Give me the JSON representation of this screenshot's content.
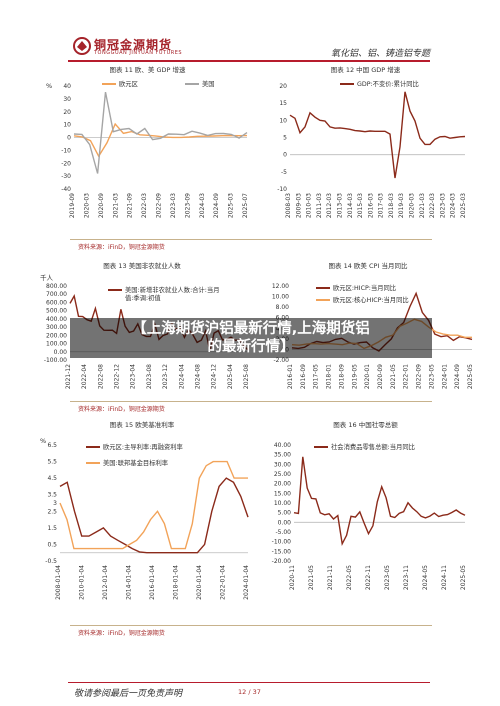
{
  "header": {
    "logo_cn": "铜冠金源期货",
    "logo_en": "TONGGUAN JINYUAN FUTURES",
    "section": "氧化铝、铝、铸造铝专题"
  },
  "banner": {
    "line1": "【上海期货沪铝最新行情,上海期货铝",
    "line2": "的最新行情】"
  },
  "sources": {
    "row1": "资料来源：iFinD，铜冠金源期货",
    "row2": "资料来源：iFinD，铜冠金源期货",
    "row3": "资料来源：iFinD，铜冠金源期货"
  },
  "footer": {
    "note": "敬请参阅最后一页免责声明",
    "page": "12 / 37"
  },
  "chart_data": [
    {
      "id": "c11",
      "title": "图表 11  欧、美 GDP 增速",
      "unit": "%",
      "type": "line",
      "ylim": [
        -40,
        40
      ],
      "yticks": [
        40,
        30,
        20,
        10,
        0,
        -10,
        -20,
        -30,
        -40
      ],
      "xticks": [
        "2019-09",
        "2020-03",
        "2020-09",
        "2021-03",
        "2021-09",
        "2022-03",
        "2022-09",
        "2023-03",
        "2023-09",
        "2024-03",
        "2024-09",
        "2025-03",
        "2025-07"
      ],
      "series": [
        {
          "name": "欧元区",
          "color": "#f2a359",
          "values": [
            1.3,
            0.5,
            -2.5,
            -14.5,
            -4.1,
            10.5,
            3.3,
            4.6,
            2.1,
            1.7,
            1.1,
            0.3,
            0.1,
            0.1,
            0.4,
            0.9,
            1.0,
            1.2,
            1.4,
            1.5,
            1.4,
            1.5
          ]
        },
        {
          "name": "美国",
          "color": "#a5a5a5",
          "values": [
            2.7,
            2.4,
            -5.5,
            -28.0,
            35.3,
            4.5,
            6.3,
            7.0,
            2.7,
            7.0,
            -1.6,
            -0.6,
            2.7,
            2.6,
            2.2,
            4.9,
            3.4,
            1.6,
            3.0,
            3.1,
            2.4,
            -0.5,
            3.8
          ]
        }
      ]
    },
    {
      "id": "c12",
      "title": "图表 12  中国 GDP 增速",
      "unit": "",
      "type": "line",
      "ylim": [
        -10,
        20
      ],
      "yticks": [
        20,
        15,
        10,
        5,
        0,
        -5,
        -10
      ],
      "xticks": [
        "2008-03",
        "2009-03",
        "2010-03",
        "2011-03",
        "2012-03",
        "2013-03",
        "2014-03",
        "2015-03",
        "2016-03",
        "2017-03",
        "2018-03",
        "2019-03",
        "2020-03",
        "2021-03",
        "2022-03",
        "2023-03",
        "2024-03",
        "2025-03"
      ],
      "series": [
        {
          "name": "GDP:不变价:累计同比",
          "color": "#8b2a1a",
          "values": [
            11.5,
            10.6,
            6.4,
            8.1,
            12.2,
            10.9,
            10.0,
            9.8,
            8.1,
            7.7,
            7.8,
            7.6,
            7.4,
            7.0,
            6.9,
            6.7,
            6.9,
            6.8,
            6.8,
            6.8,
            6.0,
            -6.8,
            2.3,
            18.3,
            12.7,
            9.8,
            4.8,
            3.0,
            3.0,
            4.5,
            5.2,
            5.3,
            4.8,
            5.0,
            5.2,
            5.3
          ]
        }
      ]
    },
    {
      "id": "c13",
      "title": "图表 13  美国非农就业人数",
      "unit": "千人",
      "type": "line",
      "ylim": [
        -100,
        800
      ],
      "yticks": [
        "800.00",
        "700.00",
        "600.00",
        "500.00",
        "400.00",
        "300.00",
        "200.00",
        "100.00",
        "0.00",
        "-100.00"
      ],
      "xticks": [
        "2021-12",
        "2022-04",
        "2022-08",
        "2022-12",
        "2023-04",
        "2023-08",
        "2023-12",
        "2024-04",
        "2024-08",
        "2024-12",
        "2025-04",
        "2025-08"
      ],
      "series": [
        {
          "name": "美国:新增非农就业人数:合计:当月值:季调:初值",
          "color": "#8b2a1a",
          "values": [
            588,
            678,
            431,
            428,
            390,
            372,
            528,
            315,
            263,
            261,
            263,
            223,
            517,
            311,
            236,
            253,
            339,
            209,
            187,
            187,
            336,
            150,
            199,
            216,
            353,
            275,
            303,
            175,
            272,
            206,
            114,
            142,
            254,
            12,
            227,
            256,
            143,
            151,
            177,
            139,
            147,
            73,
            22
          ]
        }
      ]
    },
    {
      "id": "c14",
      "title": "图表 14  欧美 CPI 当月同比",
      "unit": "",
      "type": "line",
      "ylim": [
        -2,
        12
      ],
      "yticks": [
        "12.00",
        "10.00",
        "8.00",
        "6.00",
        "4.00",
        "2.00",
        "0.00",
        "-2.00"
      ],
      "xticks": [
        "2016-01",
        "2016-09",
        "2017-05",
        "2018-01",
        "2018-09",
        "2019-05",
        "2020-01",
        "2020-09",
        "2021-05",
        "2022-01",
        "2022-09",
        "2023-05",
        "2024-01",
        "2024-09",
        "2025-05"
      ],
      "series": [
        {
          "name": "欧元区:HICP:当月同比",
          "color": "#8b2a1a",
          "values": [
            0.3,
            0.2,
            0.4,
            1.1,
            1.5,
            1.3,
            1.4,
            1.9,
            2.1,
            1.4,
            1.0,
            1.3,
            1.4,
            0.3,
            -0.3,
            0.9,
            2.0,
            4.1,
            5.1,
            8.1,
            10.6,
            7.0,
            5.5,
            2.9,
            2.4,
            2.6,
            1.7,
            2.4,
            2.2,
            1.9
          ]
        },
        {
          "name": "欧元区:核心HICP:当月同比",
          "color": "#f2a359",
          "values": [
            0.9,
            0.8,
            1.0,
            1.1,
            1.0,
            1.1,
            1.0,
            0.9,
            1.2,
            1.1,
            0.2,
            0.7,
            1.4,
            2.3,
            2.7,
            4.4,
            5.0,
            5.7,
            5.3,
            4.2,
            3.3,
            2.9,
            2.7,
            2.7,
            2.3,
            2.3
          ]
        }
      ]
    },
    {
      "id": "c15",
      "title": "图表 15  欧美基准利率",
      "unit": "%",
      "type": "line",
      "ylim": [
        -0.5,
        6.5
      ],
      "yticks": [
        "6.5",
        "5.5",
        "4.5",
        "3.5",
        "3",
        "2.5",
        "1.5",
        "0.5",
        "-0.5"
      ],
      "xticks": [
        "2008-01-04",
        "2010-01-04",
        "2012-01-04",
        "2014-01-04",
        "2016-01-04",
        "2018-01-04",
        "2020-01-04",
        "2022-01-04",
        "2024-01-04"
      ],
      "series": [
        {
          "name": "欧元区:主导利率:再融资利率",
          "color": "#8b2a1a",
          "values": [
            4.0,
            4.25,
            2.5,
            1.0,
            1.0,
            1.25,
            1.5,
            1.0,
            0.75,
            0.5,
            0.25,
            0.05,
            0.0,
            0.0,
            0.0,
            0.0,
            0.0,
            0.0,
            0.0,
            0.0,
            0.5,
            2.5,
            4.0,
            4.5,
            4.25,
            3.4,
            2.15
          ]
        },
        {
          "name": "美国:联邦基金目标利率",
          "color": "#f2a359",
          "values": [
            3.0,
            2.0,
            0.25,
            0.25,
            0.25,
            0.25,
            0.25,
            0.25,
            0.25,
            0.25,
            0.5,
            0.75,
            1.25,
            2.0,
            2.5,
            1.75,
            0.25,
            0.25,
            0.25,
            1.75,
            4.5,
            5.25,
            5.5,
            5.5,
            5.5,
            4.5,
            4.5,
            4.5
          ]
        }
      ]
    },
    {
      "id": "c16",
      "title": "图表 16  中国社零总额",
      "unit": "%",
      "type": "line",
      "ylim": [
        -20,
        40
      ],
      "yticks": [
        "40.00",
        "35.00",
        "30.00",
        "25.00",
        "20.00",
        "15.00",
        "10.00",
        "5.00",
        "0.00",
        "-5.00",
        "-10.00",
        "-15.00",
        "-20.00"
      ],
      "xticks": [
        "2020-11",
        "2021-05",
        "2021-11",
        "2022-05",
        "2022-11",
        "2023-05",
        "2023-11",
        "2024-05",
        "2024-11",
        "2025-05"
      ],
      "series": [
        {
          "name": "社会消费品零售总额:当月同比",
          "color": "#8b2a1a",
          "values": [
            5.0,
            4.6,
            33.9,
            17.7,
            12.4,
            12.1,
            4.9,
            3.9,
            4.4,
            1.7,
            3.5,
            -11.1,
            -6.7,
            3.1,
            2.7,
            5.4,
            -0.5,
            -5.9,
            -1.8,
            10.6,
            18.4,
            12.7,
            3.1,
            2.5,
            4.6,
            5.5,
            10.1,
            7.4,
            5.5,
            3.1,
            2.3,
            3.2,
            4.8,
            3.0,
            3.7,
            4.0,
            5.1,
            6.4,
            4.8,
            3.7
          ]
        }
      ]
    }
  ]
}
